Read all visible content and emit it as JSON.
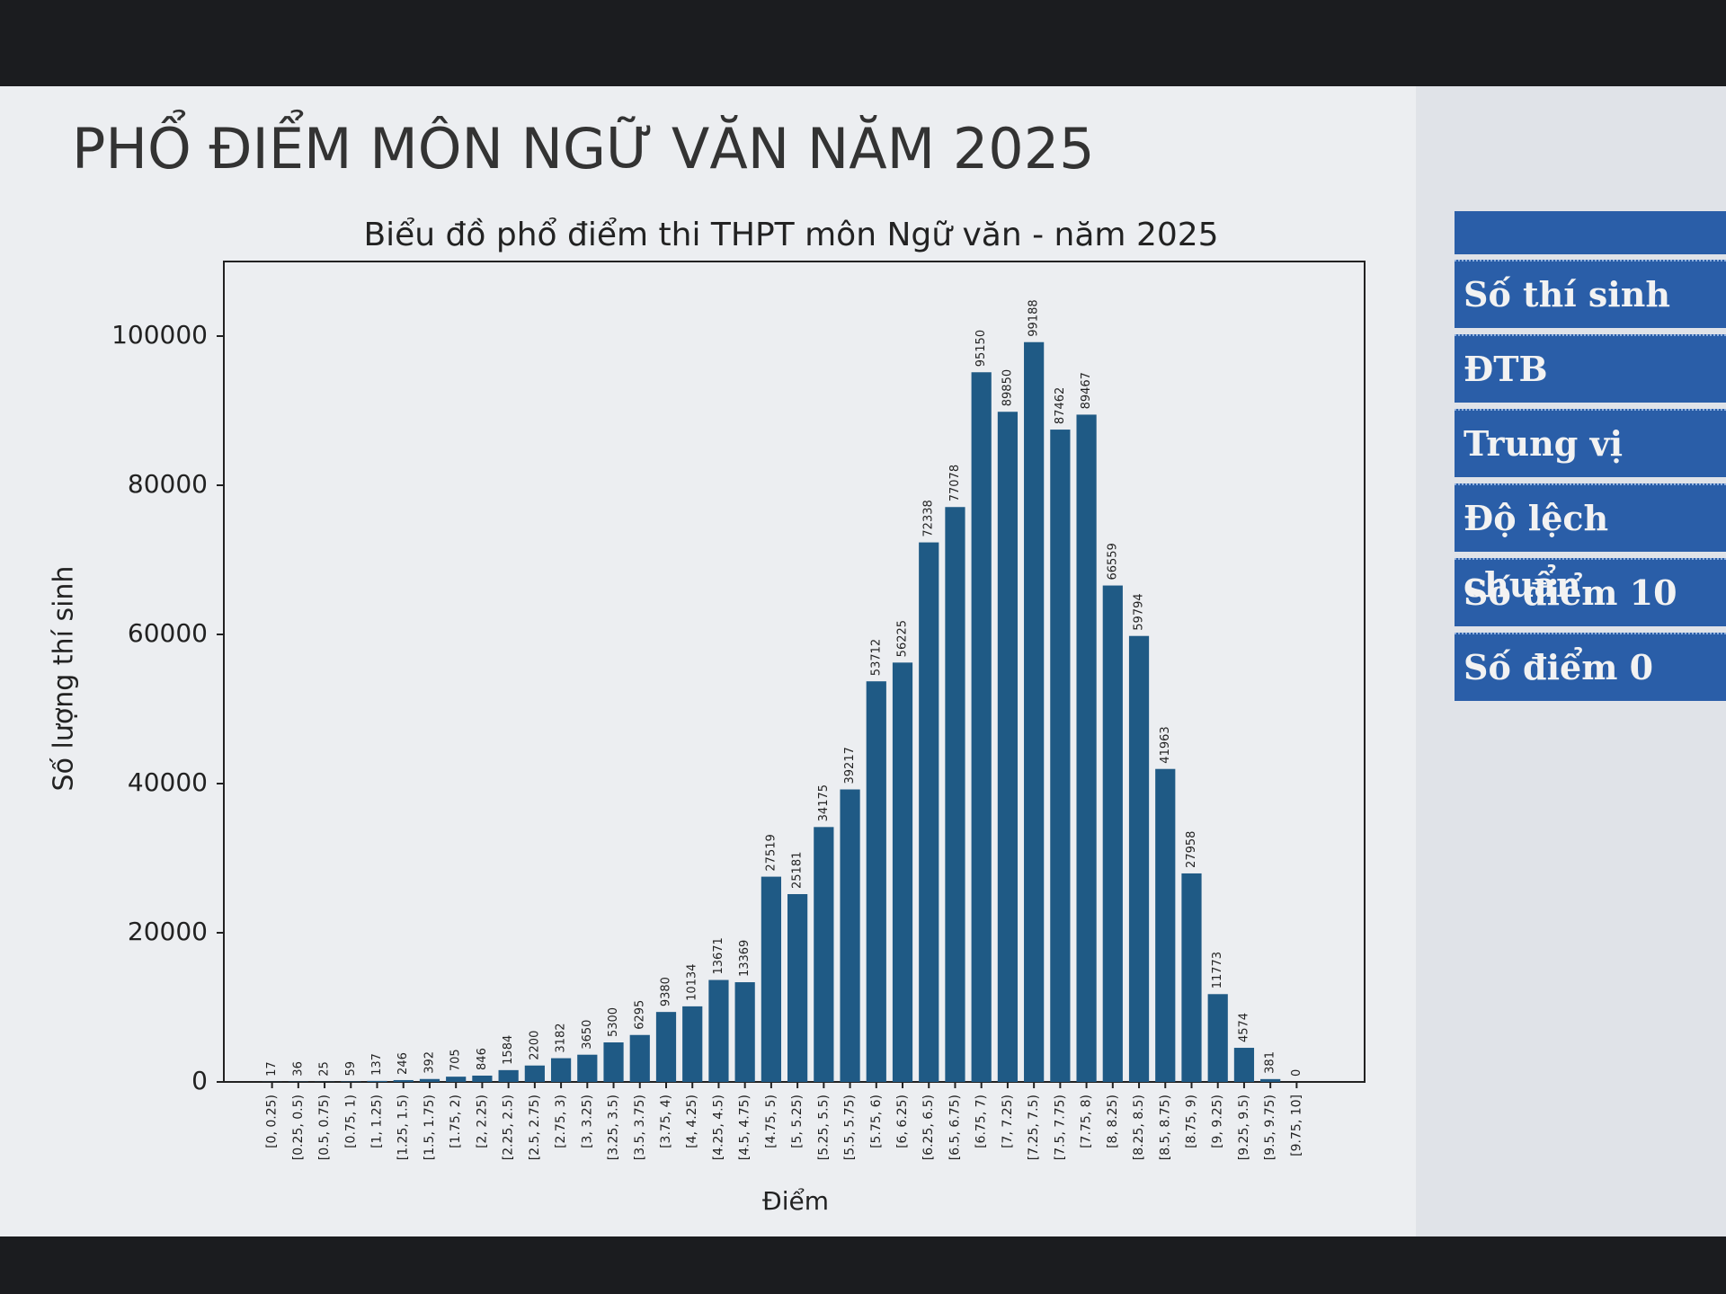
{
  "header": {
    "title": "PHỔ ĐIỂM MÔN NGỮ VĂN NĂM 2025"
  },
  "chart_data": {
    "type": "bar",
    "title": "Biểu đồ phổ điểm thi THPT môn Ngữ văn - năm 2025",
    "x_label": "Điểm",
    "y_label": "Số lượng thí sinh",
    "categories": [
      "[0, 0.25)",
      "[0.25, 0.5)",
      "[0.5, 0.75)",
      "[0.75, 1)",
      "[1, 1.25)",
      "[1.25, 1.5)",
      "[1.5, 1.75)",
      "[1.75, 2)",
      "[2, 2.25)",
      "[2.25, 2.5)",
      "[2.5, 2.75)",
      "[2.75, 3)",
      "[3, 3.25)",
      "[3.25, 3.5)",
      "[3.5, 3.75)",
      "[3.75, 4)",
      "[4, 4.25)",
      "[4.25, 4.5)",
      "[4.5, 4.75)",
      "[4.75, 5)",
      "[5, 5.25)",
      "[5.25, 5.5)",
      "[5.5, 5.75)",
      "[5.75, 6)",
      "[6, 6.25)",
      "[6.25, 6.5)",
      "[6.5, 6.75)",
      "[6.75, 7)",
      "[7, 7.25)",
      "[7.25, 7.5)",
      "[7.5, 7.75)",
      "[7.75, 8)",
      "[8, 8.25)",
      "[8.25, 8.5)",
      "[8.5, 8.75)",
      "[8.75, 9)",
      "[9, 9.25)",
      "[9.25, 9.5)",
      "[9.5, 9.75)",
      "[9.75, 10]"
    ],
    "values": [
      17,
      36,
      25,
      59,
      137,
      246,
      392,
      705,
      846,
      1584,
      2200,
      3182,
      3650,
      5300,
      6295,
      9380,
      10134,
      13671,
      13369,
      27519,
      25181,
      34175,
      39217,
      53712,
      56225,
      72338,
      77078,
      95150,
      89850,
      99188,
      87462,
      89467,
      66559,
      59794,
      41963,
      27958,
      11773,
      4574,
      381,
      0
    ],
    "color": "#1f5a85",
    "ylim": [
      0,
      110000
    ],
    "yticks": [
      0,
      20000,
      40000,
      60000,
      80000,
      100000
    ]
  },
  "panel": {
    "rows": [
      "Số thí sinh",
      "ĐTB",
      "Trung vị",
      "Độ lệch chuẩn",
      "Số điểm 10",
      "Số điểm 0"
    ]
  }
}
